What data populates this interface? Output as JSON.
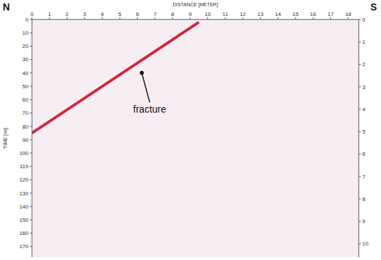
{
  "chart_data": {
    "type": "line",
    "x_label": "DISTANCE [METER]",
    "y_label": "TIME [ns]",
    "corner_labels": [
      "N",
      "S"
    ],
    "xlim": [
      0,
      18.6
    ],
    "xticks": [
      0,
      1,
      2,
      3,
      4,
      5,
      6,
      7,
      8,
      9,
      10,
      11,
      12,
      13,
      14,
      15,
      16,
      17,
      18
    ],
    "ylim": [
      0,
      178
    ],
    "yticks": [
      0,
      10,
      20,
      30,
      40,
      50,
      60,
      70,
      80,
      90,
      100,
      110,
      120,
      130,
      140,
      150,
      160,
      170
    ],
    "y2lim": [
      0,
      10.6
    ],
    "y2ticks": [
      0,
      1,
      2,
      3,
      4,
      5,
      6,
      7,
      8,
      9,
      10
    ],
    "grid": false,
    "series": [
      {
        "name": "fracture",
        "color": "#d2263c",
        "x": [
          0,
          9.5
        ],
        "values": [
          85,
          2
        ]
      }
    ],
    "annotations": [
      {
        "text": "fracture",
        "x": 6.7,
        "y": 62,
        "arrow_to": [
          6.25,
          40
        ]
      }
    ]
  }
}
